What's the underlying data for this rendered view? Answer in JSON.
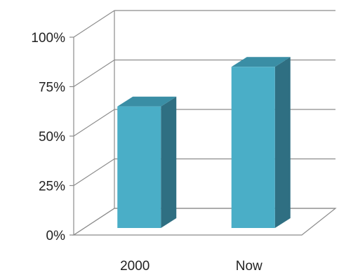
{
  "chart_data": {
    "type": "bar",
    "style": "3d-column",
    "categories": [
      "2000",
      "Now"
    ],
    "values": [
      65,
      85
    ],
    "unit": "%",
    "ylim": [
      0,
      100
    ],
    "yticks": [
      0,
      25,
      50,
      75,
      100
    ],
    "ytick_labels": [
      "0%",
      "25%",
      "50%",
      "75%",
      "100%"
    ],
    "title": "",
    "xlabel": "",
    "ylabel": "",
    "grid": true,
    "legend": "none",
    "colors": {
      "bar_front": "#4aaec7",
      "bar_side": "#2f6f82",
      "bar_top": "#3a8ea5",
      "grid": "#8c8c8c",
      "text": "#222222"
    }
  }
}
